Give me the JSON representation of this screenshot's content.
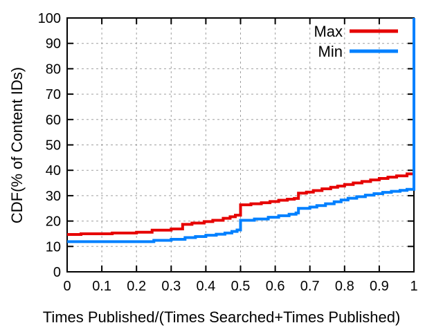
{
  "chart_data": {
    "type": "line",
    "subtype": "step-cdf",
    "title": "",
    "xlabel": "Times Published/(Times Searched+Times Published)",
    "ylabel": "CDF(% of Content IDs)",
    "xlim": [
      0,
      1
    ],
    "ylim": [
      0,
      100
    ],
    "grid": "dashed",
    "legend_position": "top-right-inside",
    "colors": {
      "background": "#ffffff",
      "border": "#000000",
      "grid": "#9e9e9e",
      "text": "#000000",
      "max_line": "#e60000",
      "min_line": "#0080ff"
    },
    "x_ticks": {
      "values": [
        0,
        0.1,
        0.2,
        0.3,
        0.4,
        0.5,
        0.6,
        0.7,
        0.8,
        0.9,
        1
      ],
      "labels": [
        "0",
        "0.1",
        "0.2",
        "0.3",
        "0.4",
        "0.5",
        "0.6",
        "0.7",
        "0.8",
        "0.9",
        "1"
      ]
    },
    "y_ticks": {
      "values": [
        0,
        10,
        20,
        30,
        40,
        50,
        60,
        70,
        80,
        90,
        100
      ],
      "labels": [
        "0",
        "10",
        "20",
        "30",
        "40",
        "50",
        "60",
        "70",
        "80",
        "90",
        "100"
      ]
    },
    "series": [
      {
        "name": "Max",
        "color": "#e60000",
        "points": [
          [
            0,
            14.7
          ],
          [
            0.04,
            15.0
          ],
          [
            0.13,
            15.3
          ],
          [
            0.2,
            15.6
          ],
          [
            0.245,
            16.4
          ],
          [
            0.3,
            16.9
          ],
          [
            0.333,
            18.7
          ],
          [
            0.36,
            19.2
          ],
          [
            0.395,
            19.8
          ],
          [
            0.42,
            20.3
          ],
          [
            0.45,
            21.1
          ],
          [
            0.47,
            21.7
          ],
          [
            0.485,
            22.3
          ],
          [
            0.5,
            26.4
          ],
          [
            0.53,
            26.8
          ],
          [
            0.56,
            27.2
          ],
          [
            0.585,
            27.7
          ],
          [
            0.61,
            28.2
          ],
          [
            0.635,
            28.6
          ],
          [
            0.655,
            28.9
          ],
          [
            0.667,
            31.0
          ],
          [
            0.69,
            31.4
          ],
          [
            0.71,
            32.0
          ],
          [
            0.735,
            32.7
          ],
          [
            0.76,
            33.3
          ],
          [
            0.78,
            33.8
          ],
          [
            0.8,
            34.4
          ],
          [
            0.825,
            35.0
          ],
          [
            0.85,
            35.6
          ],
          [
            0.875,
            36.2
          ],
          [
            0.9,
            36.8
          ],
          [
            0.925,
            37.3
          ],
          [
            0.95,
            37.8
          ],
          [
            0.98,
            38.6
          ],
          [
            1.0,
            100
          ]
        ]
      },
      {
        "name": "Min",
        "color": "#0080ff",
        "points": [
          [
            0,
            11.9
          ],
          [
            0.25,
            12.4
          ],
          [
            0.3,
            12.8
          ],
          [
            0.34,
            13.5
          ],
          [
            0.37,
            13.9
          ],
          [
            0.4,
            14.4
          ],
          [
            0.43,
            14.8
          ],
          [
            0.455,
            15.3
          ],
          [
            0.475,
            15.9
          ],
          [
            0.49,
            16.5
          ],
          [
            0.5,
            20.3
          ],
          [
            0.54,
            20.8
          ],
          [
            0.58,
            21.5
          ],
          [
            0.61,
            22.1
          ],
          [
            0.64,
            22.7
          ],
          [
            0.66,
            23.2
          ],
          [
            0.667,
            25.0
          ],
          [
            0.7,
            25.5
          ],
          [
            0.72,
            26.1
          ],
          [
            0.745,
            26.8
          ],
          [
            0.77,
            27.6
          ],
          [
            0.79,
            28.3
          ],
          [
            0.81,
            29.0
          ],
          [
            0.835,
            29.6
          ],
          [
            0.86,
            30.2
          ],
          [
            0.885,
            30.8
          ],
          [
            0.91,
            31.3
          ],
          [
            0.935,
            31.7
          ],
          [
            0.96,
            32.1
          ],
          [
            0.98,
            32.5
          ],
          [
            1.0,
            100
          ]
        ]
      }
    ]
  }
}
